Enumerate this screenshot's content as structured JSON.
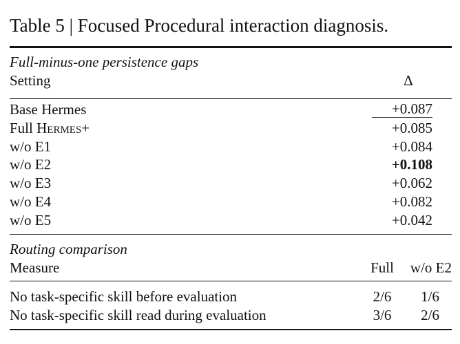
{
  "header": {
    "title": "Table 5 | Focused Procedural interaction diagnosis."
  },
  "section1": {
    "caption": "Full-minus-one persistence gaps",
    "columns": [
      "Setting",
      "Δ"
    ],
    "rows": [
      {
        "setting": "Base Hermes",
        "delta": "+0.087",
        "emphasis": "underline"
      },
      {
        "setting": {
          "prefix": "Full ",
          "smallcaps": "Hermes",
          "suffix": "+"
        },
        "delta": "+0.085"
      },
      {
        "setting": "w/o E1",
        "delta": "+0.084"
      },
      {
        "setting": "w/o E2",
        "delta": "+0.108",
        "emphasis": "bold"
      },
      {
        "setting": "w/o E3",
        "delta": "+0.062"
      },
      {
        "setting": "w/o E4",
        "delta": "+0.082"
      },
      {
        "setting": "w/o E5",
        "delta": "+0.042"
      }
    ]
  },
  "section2": {
    "caption": "Routing comparison",
    "columns": [
      "Measure",
      "Full",
      "w/o E2"
    ],
    "rows": [
      [
        "No task-specific skill before evaluation",
        "2/6",
        "1/6"
      ],
      [
        "No task-specific skill read during evaluation",
        "3/6",
        "2/6"
      ]
    ]
  }
}
